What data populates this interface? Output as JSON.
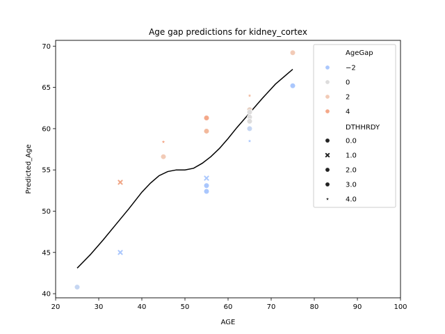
{
  "chart_data": {
    "type": "scatter",
    "title": "Age gap predictions for kidney_cortex",
    "xlabel": "AGE",
    "ylabel": "Predicted_Age",
    "xlim": [
      20,
      100
    ],
    "ylim": [
      39.5,
      70.7
    ],
    "xticks": [
      20,
      30,
      40,
      50,
      60,
      70,
      80,
      90,
      100
    ],
    "yticks": [
      40,
      45,
      50,
      55,
      60,
      65,
      70
    ],
    "grid": false,
    "legend": {
      "placement": "upper right",
      "hue_title": "AgeGap",
      "hue_entries": [
        {
          "label": "−2",
          "color": "#aac7fd"
        },
        {
          "label": "0",
          "color": "#dddcdc"
        },
        {
          "label": "2",
          "color": "#f2cbb7"
        },
        {
          "label": "4",
          "color": "#f4a889"
        }
      ],
      "size_title": "DTHHRDY",
      "size_entries": [
        {
          "label": "0.0",
          "marker": "circle"
        },
        {
          "label": "1.0",
          "marker": "x"
        },
        {
          "label": "2.0",
          "marker": "circle"
        },
        {
          "label": "3.0",
          "marker": "circle"
        },
        {
          "label": "4.0",
          "marker": "star"
        }
      ]
    },
    "points": [
      {
        "x": 25,
        "y": 40.8,
        "color": "#c5d6f2",
        "marker": "circle"
      },
      {
        "x": 35,
        "y": 53.5,
        "color": "#f0a585",
        "marker": "x"
      },
      {
        "x": 35,
        "y": 45.0,
        "color": "#aac7fd",
        "marker": "x"
      },
      {
        "x": 45,
        "y": 58.4,
        "color": "#f4a889",
        "marker": "star"
      },
      {
        "x": 45,
        "y": 56.6,
        "color": "#f2cbb7",
        "marker": "circle"
      },
      {
        "x": 55,
        "y": 61.3,
        "color": "#f4a889",
        "marker": "circle"
      },
      {
        "x": 55,
        "y": 59.7,
        "color": "#f2b99c",
        "marker": "circle"
      },
      {
        "x": 55,
        "y": 54.0,
        "color": "#aac7fd",
        "marker": "x"
      },
      {
        "x": 55,
        "y": 53.1,
        "color": "#aac7fd",
        "marker": "circle"
      },
      {
        "x": 55,
        "y": 52.4,
        "color": "#aac7fd",
        "marker": "circle"
      },
      {
        "x": 65,
        "y": 64.0,
        "color": "#f2b99c",
        "marker": "star"
      },
      {
        "x": 65,
        "y": 62.3,
        "color": "#e6d0c2",
        "marker": "circle"
      },
      {
        "x": 65,
        "y": 62.0,
        "color": "#dddcdc",
        "marker": "circle"
      },
      {
        "x": 65,
        "y": 61.4,
        "color": "#dddcdc",
        "marker": "circle"
      },
      {
        "x": 65,
        "y": 60.9,
        "color": "#dddcdc",
        "marker": "circle"
      },
      {
        "x": 65,
        "y": 60.0,
        "color": "#c5d6f2",
        "marker": "circle"
      },
      {
        "x": 65,
        "y": 58.5,
        "color": "#aac7fd",
        "marker": "star"
      },
      {
        "x": 75,
        "y": 69.2,
        "color": "#f2cbb7",
        "marker": "circle"
      },
      {
        "x": 75,
        "y": 65.2,
        "color": "#aac7fd",
        "marker": "circle"
      }
    ],
    "fit_line": {
      "color": "#000000",
      "x": [
        25,
        28,
        31,
        34,
        37,
        40,
        42,
        44,
        46,
        48,
        50,
        52,
        54,
        56,
        58,
        60,
        62,
        65,
        68,
        71,
        75
      ],
      "y": [
        43.1,
        44.7,
        46.5,
        48.4,
        50.3,
        52.3,
        53.4,
        54.3,
        54.8,
        55.0,
        55.0,
        55.2,
        55.8,
        56.6,
        57.6,
        58.8,
        60.1,
        61.9,
        63.7,
        65.4,
        67.2
      ]
    }
  }
}
